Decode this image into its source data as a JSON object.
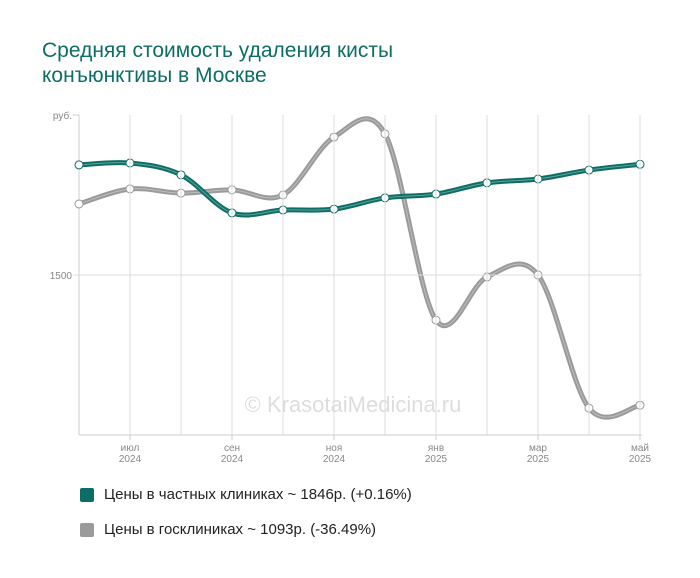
{
  "chart_data": {
    "type": "line",
    "title": "Средняя стоимость удаления кисты конъюнктивы в Москве",
    "y_label": "руб.",
    "watermark": "© KrasotaiMedicina.ru",
    "categories": [
      null,
      "июл 2024",
      null,
      "сен 2024",
      null,
      "ноя 2024",
      null,
      "янв 2025",
      null,
      "мар 2025",
      null,
      "май 2025"
    ],
    "series": [
      {
        "name": "Цены в частных клиниках ~ 1846р. (+0.16%)",
        "color": "#0d6e66",
        "values": [
          1844,
          1850,
          1813,
          1694,
          1703,
          1706,
          1741,
          1753,
          1788,
          1800,
          1828,
          1846
        ]
      },
      {
        "name": "Цены в госклиниках ~ 1093р. (-36.49%)",
        "color": "#9a9a9a",
        "values": [
          1722,
          1769,
          1756,
          1766,
          1750,
          1931,
          1941,
          1359,
          1494,
          1500,
          1084,
          1093
        ]
      }
    ],
    "ylim": [
      1000,
      2000
    ],
    "yticks": [
      1500
    ],
    "grid": true
  }
}
